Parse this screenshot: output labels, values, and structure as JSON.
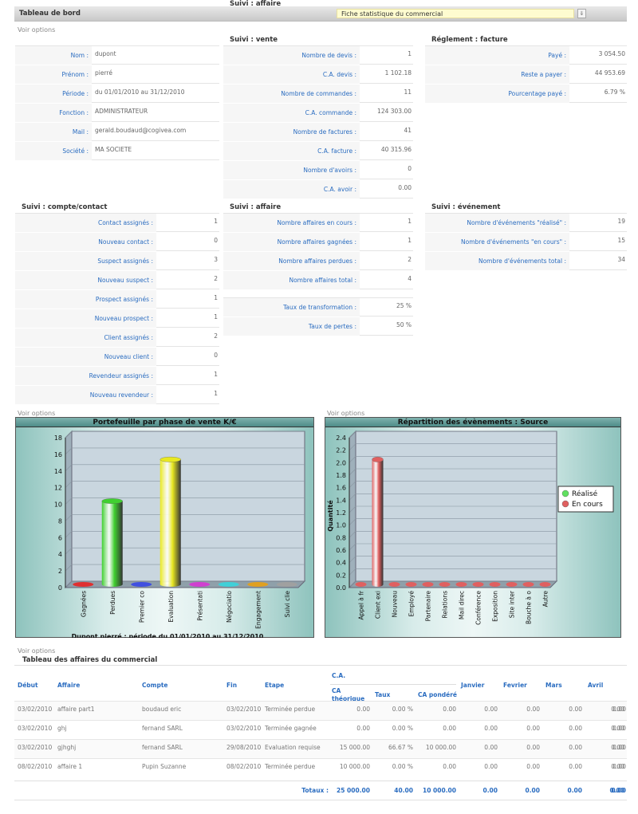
{
  "header": {
    "title": "Tableau de bord",
    "select_value": "Fiche statistique du commercial"
  },
  "voir_options": "Voir options",
  "profile": {
    "rows": [
      {
        "label": "Nom :",
        "value": "dupont"
      },
      {
        "label": "Prénom :",
        "value": "pierré"
      },
      {
        "label": "Période :",
        "value": "du 01/01/2010 au 31/12/2010"
      },
      {
        "label": "Fonction :",
        "value": "ADMINISTRATEUR"
      },
      {
        "label": "Mail :",
        "value": "gerald.boudaud@cogivea.com"
      },
      {
        "label": "Société :",
        "value": "MA SOCIETE"
      }
    ]
  },
  "vente": {
    "title": "Suivi : vente",
    "rows": [
      {
        "label": "Nombre de devis :",
        "value": "1"
      },
      {
        "label": "C.A. devis :",
        "value": "1 102.18"
      },
      {
        "label": "Nombre de commandes :",
        "value": "11"
      },
      {
        "label": "C.A. commande :",
        "value": "124 303.00"
      },
      {
        "label": "Nombre de factures :",
        "value": "41"
      },
      {
        "label": "C.A. facture :",
        "value": "40 315.96"
      },
      {
        "label": "Nombre d'avoirs :",
        "value": "0"
      },
      {
        "label": "C.A. avoir :",
        "value": "0.00"
      }
    ]
  },
  "reglement": {
    "title": "Réglement : facture",
    "rows": [
      {
        "label": "Payé :",
        "value": "3 054.50"
      },
      {
        "label": "Reste a payer :",
        "value": "44 953.69"
      },
      {
        "label": "Pourcentage payé :",
        "value": "6.79 %"
      }
    ]
  },
  "compte": {
    "title": "Suivi : compte/contact",
    "rows": [
      {
        "label": "Contact assignés :",
        "value": "1"
      },
      {
        "label": "Nouveau contact :",
        "value": "0"
      },
      {
        "label": "Suspect assignés :",
        "value": "3"
      },
      {
        "label": "Nouveau suspect :",
        "value": "2"
      },
      {
        "label": "Prospect assignés :",
        "value": "1"
      },
      {
        "label": "Nouveau prospect :",
        "value": "1"
      },
      {
        "label": "Client assignés :",
        "value": "2"
      },
      {
        "label": "Nouveau client :",
        "value": "0"
      },
      {
        "label": "Revendeur assignés :",
        "value": "1"
      },
      {
        "label": "Nouveau revendeur :",
        "value": "1"
      }
    ]
  },
  "affaire": {
    "title": "Suivi : affaire",
    "rows": [
      {
        "label": "Nombre affaires en cours :",
        "value": "1"
      },
      {
        "label": "Nombre affaires gagnées :",
        "value": "1"
      },
      {
        "label": "Nombre affaires perdues :",
        "value": "2"
      },
      {
        "label": "Nombre affaires total :",
        "value": "4"
      }
    ],
    "rows2": [
      {
        "label": "Taux de transformation :",
        "value": "25 %"
      },
      {
        "label": "Taux de pertes :",
        "value": "50 %"
      }
    ]
  },
  "evenement": {
    "title": "Suivi : événement",
    "rows": [
      {
        "label": "Nombre d'événements \"réalisé\" :",
        "value": "19"
      },
      {
        "label": "Nombre d'événements \"en cours\" :",
        "value": "15"
      },
      {
        "label": "Nombre d'événements total :",
        "value": "34"
      }
    ]
  },
  "chart_data": [
    {
      "type": "bar",
      "title": "Portefeuille par phase de vente K/€",
      "categories": [
        "Gagnées",
        "Perdues",
        "Premier co",
        "Evaluation",
        "Présentati",
        "Négociatio",
        "Engagement",
        "Suivi clie"
      ],
      "values": [
        0,
        10,
        0,
        15,
        0,
        0,
        0,
        0
      ],
      "colors": [
        "#e03030",
        "#40d030",
        "#4050e0",
        "#e8e820",
        "#d040d0",
        "#40d0d8",
        "#e0a020",
        "#a0a0a0"
      ],
      "ylim": [
        0,
        18
      ],
      "yticks": [
        "0",
        "2",
        "4",
        "6",
        "8",
        "10",
        "12",
        "14",
        "16",
        "18"
      ],
      "footer": "Dupont pierré : période du 01/01/2010 au 31/12/2010"
    },
    {
      "type": "bar",
      "title": "Répartition des évènements : Source",
      "categories": [
        "Appel à fr",
        "Client exi",
        "Nouveau",
        "Employé",
        "Partenaire",
        "Relations",
        "Mail direc",
        "Conférence",
        "Exposition",
        "Site inter",
        "Bouche à o",
        "Autre"
      ],
      "series": [
        {
          "name": "Réalisé",
          "values": [
            0,
            0,
            0,
            0,
            0,
            0,
            0,
            0,
            0,
            0,
            0,
            0
          ]
        },
        {
          "name": "En cours",
          "values": [
            0,
            2,
            0,
            0,
            0,
            0,
            0,
            0,
            0,
            0,
            0,
            0
          ]
        }
      ],
      "ylabel": "Quantité",
      "ylim": [
        0,
        2.4
      ],
      "yticks": [
        "0.0",
        "0.2",
        "0.4",
        "0.6",
        "0.8",
        "1.0",
        "1.2",
        "1.4",
        "1.6",
        "1.8",
        "2.0",
        "2.2",
        "2.4"
      ],
      "legend": "right",
      "series_colors": [
        "#60e060",
        "#e06060"
      ]
    }
  ],
  "affaires_table": {
    "title": "Tableau des affaires du commercial",
    "headers": {
      "debut": "Début",
      "affaire": "Affaire",
      "compte": "Compte",
      "fin": "Fin",
      "etape": "Etape",
      "ca": "C.A.",
      "ca_theo": "CA théorique",
      "taux": "Taux",
      "ca_pond": "CA pondéré",
      "janvier": "Janvier",
      "fevrier": "Fevrier",
      "mars": "Mars",
      "avril": "Avril"
    },
    "rows": [
      {
        "debut": "03/02/2010",
        "affaire": "affaire part1",
        "compte": "boudaud eric",
        "fin": "03/02/2010",
        "etape": "Terminée perdue",
        "ca_theo": "0.00",
        "taux": "0.00 %",
        "ca_pond": "0.00",
        "janvier": "0.00",
        "fevrier": "0.00",
        "mars": "0.00",
        "avril": "0.00",
        "extra": "0.00"
      },
      {
        "debut": "03/02/2010",
        "affaire": "ghj",
        "compte": "fernand SARL",
        "fin": "03/02/2010",
        "etape": "Terminée gagnée",
        "ca_theo": "0.00",
        "taux": "0.00 %",
        "ca_pond": "0.00",
        "janvier": "0.00",
        "fevrier": "0.00",
        "mars": "0.00",
        "avril": "0.00",
        "extra": "0.00"
      },
      {
        "debut": "03/02/2010",
        "affaire": "gjhghj",
        "compte": "fernand SARL",
        "fin": "29/08/2010",
        "etape": "Evaluation requise",
        "ca_theo": "15 000.00",
        "taux": "66.67 %",
        "ca_pond": "10 000.00",
        "janvier": "0.00",
        "fevrier": "0.00",
        "mars": "0.00",
        "avril": "0.00",
        "extra": "0.00"
      },
      {
        "debut": "08/02/2010",
        "affaire": "affaire 1",
        "compte": "Pupin Suzanne",
        "fin": "08/02/2010",
        "etape": "Terminée perdue",
        "ca_theo": "10 000.00",
        "taux": "0.00 %",
        "ca_pond": "0.00",
        "janvier": "0.00",
        "fevrier": "0.00",
        "mars": "0.00",
        "avril": "0.00",
        "extra": "0.00"
      }
    ],
    "totals": {
      "label": "Totaux :",
      "ca_theo": "25 000.00",
      "taux": "40.00",
      "ca_pond": "10 000.00",
      "janvier": "0.00",
      "fevrier": "0.00",
      "mars": "0.00",
      "avril": "0.00",
      "extra": "0.00"
    }
  }
}
